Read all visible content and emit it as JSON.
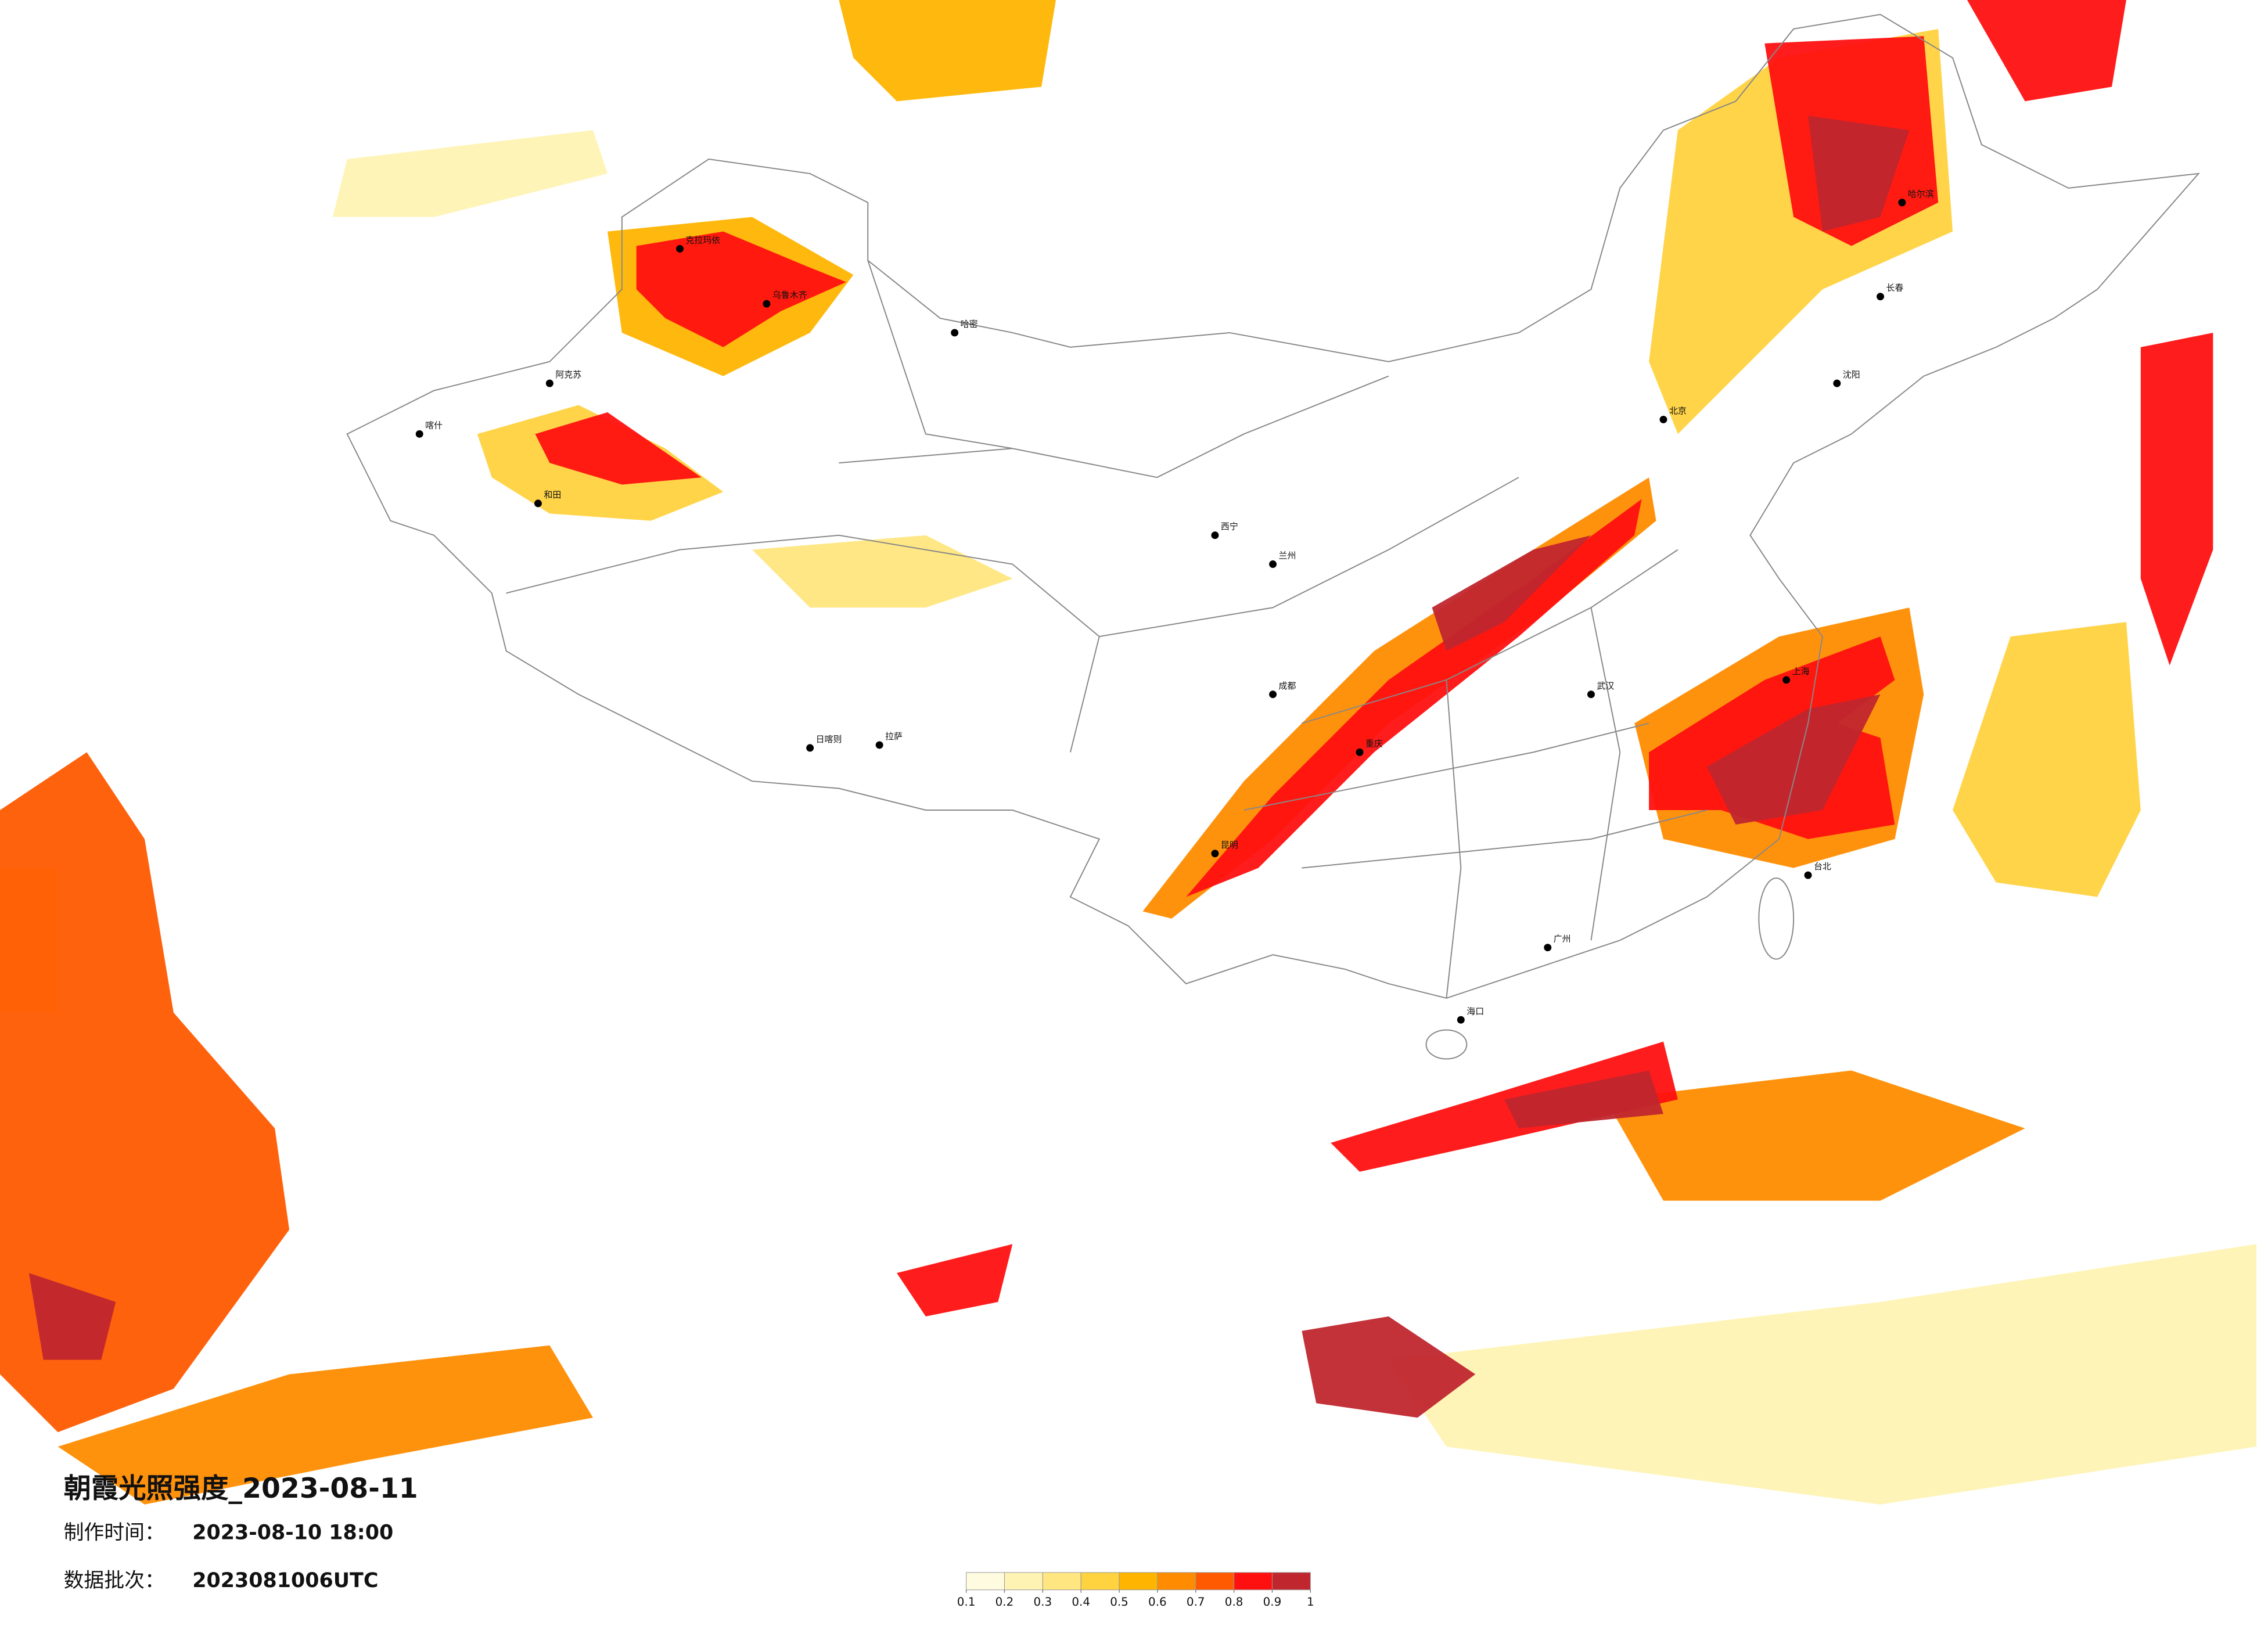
{
  "header": {
    "title": "朝霞光照强度_2023-08-11",
    "made_label": "制作时间：",
    "made_value": "2023-08-10 18:00",
    "batch_label": "数据批次：",
    "batch_value": "2023081006UTC"
  },
  "colorbar": {
    "ticks": [
      0.1,
      0.2,
      0.3,
      0.4,
      0.5,
      0.6,
      0.7,
      0.8,
      0.9,
      1
    ],
    "colors": [
      "#fffbe0",
      "#fff3b3",
      "#ffe680",
      "#ffd23f",
      "#ffb400",
      "#ff8c00",
      "#ff5a00",
      "#ff1010",
      "#c0262e"
    ]
  },
  "cities": [
    "克拉玛依",
    "乌鲁木齐",
    "哈密",
    "喀什",
    "阿克苏",
    "和田",
    "拉萨",
    "日喀则",
    "西宁",
    "兰州",
    "北京",
    "哈尔滨",
    "长春",
    "沈阳",
    "上海",
    "台北",
    "海口",
    "成都",
    "重庆",
    "昆明",
    "广州",
    "武汉"
  ]
}
